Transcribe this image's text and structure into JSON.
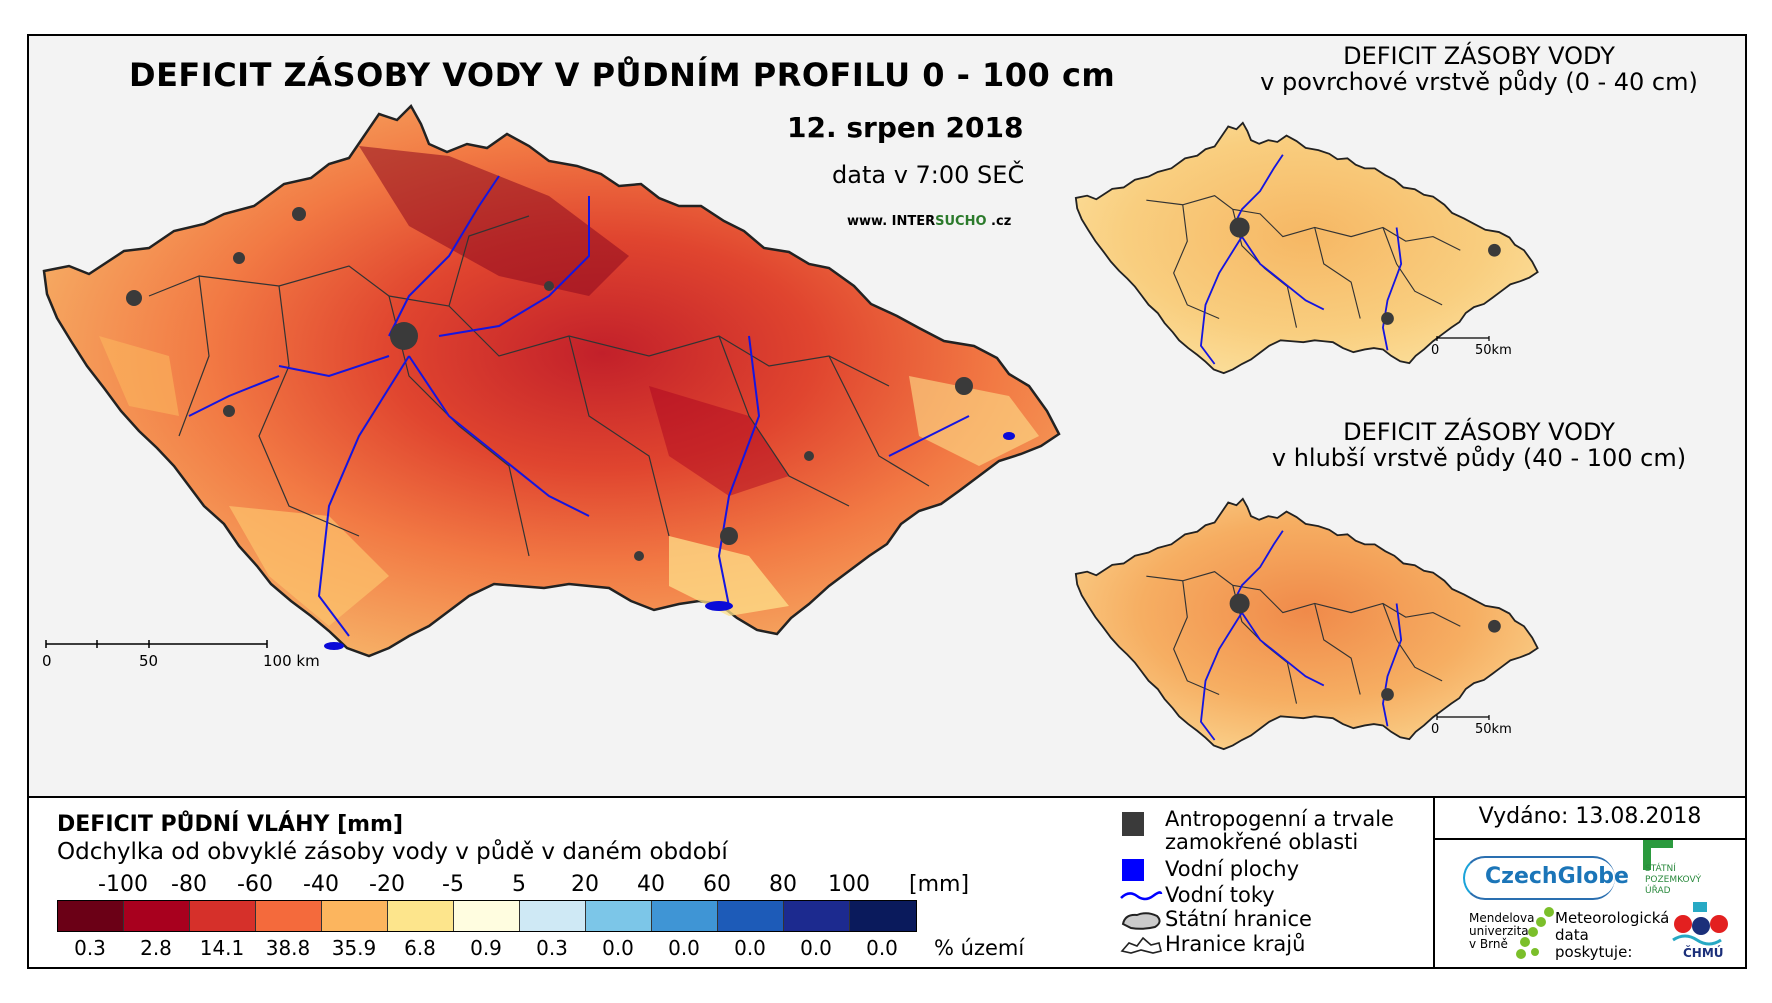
{
  "titles": {
    "main": "DEFICIT ZÁSOBY VODY V PŮDNÍM PROFILU 0 - 100 cm",
    "date": "12. srpen 2018",
    "data_time": "data v 7:00 SEČ",
    "web_prefix": "www. INTER",
    "web_hl": "SUCHO",
    "web_suffix": " .cz",
    "sub1_line1": "DEFICIT ZÁSOBY VODY",
    "sub1_line2": "v povrchové vrstvě půdy (0 - 40 cm)",
    "sub2_line1": "DEFICIT ZÁSOBY VODY",
    "sub2_line2": "v hlubší vrstvě půdy (40 - 100 cm)"
  },
  "scale_main": {
    "l0": "0",
    "l1": "50",
    "l2": "100 km"
  },
  "scale_small1": {
    "l0": "0",
    "l1": "50km"
  },
  "scale_small2": {
    "l0": "0",
    "l1": "50km"
  },
  "legend": {
    "title": "DEFICIT PŮDNÍ VLÁHY [mm]",
    "subtitle": "Odchylka od obvyklé zásoby vody v půdě v daném období",
    "ticks": [
      "-100",
      "-80",
      "-60",
      "-40",
      "-20",
      "-5",
      "5",
      "20",
      "40",
      "60",
      "80",
      "100"
    ],
    "unit": "[mm]",
    "colors": [
      "#6b0016",
      "#a8001e",
      "#d6302a",
      "#f46a3c",
      "#fcb55e",
      "#fde58c",
      "#fffde0",
      "#cfe9f5",
      "#7cc6e8",
      "#3f95d5",
      "#1d5bb8",
      "#1c2a8f",
      "#0a1a5c"
    ],
    "percentages": [
      "0.3",
      "2.8",
      "14.1",
      "38.8",
      "35.9",
      "6.8",
      "0.9",
      "0.3",
      "0.0",
      "0.0",
      "0.0",
      "0.0",
      "0.0"
    ],
    "pct_unit": "% území"
  },
  "legend2": {
    "anthropogenic_l1": "Antropogenní a trvale",
    "anthropogenic_l2": "zamokřené oblasti",
    "water_bodies": "Vodní plochy",
    "rivers": "Vodní toky",
    "state_border": "Státní hranice",
    "regional_border": "Hranice krajů"
  },
  "issued": "Vydáno: 13.08.2018",
  "logos": {
    "czechglobe": "CzechGlobe",
    "spu_l1": "STÁTNÍ",
    "spu_l2": "POZEMKOVÝ",
    "spu_l3": "ÚŘAD",
    "mendel_l1": "Mendelova",
    "mendel_l2": "univerzita",
    "mendel_l3": "v Brně",
    "meteo_l1": "Meteorologická",
    "meteo_l2": "data",
    "meteo_l3": "poskytuje:",
    "chmu": "ČHMÚ"
  }
}
